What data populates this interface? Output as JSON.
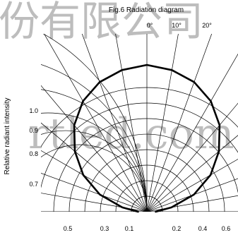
{
  "chart_data": {
    "type": "polar",
    "title": "Fig.6 Radiation diagram",
    "ylabel": "Relative radiant intensity",
    "angle_tick_labels": [
      "0°",
      "10°",
      "20°"
    ],
    "radial_tick_labels": [
      "1.0",
      "0.9",
      "0.8",
      "0.7"
    ],
    "bottom_tick_labels": [
      "0.5",
      "0.3",
      "0.1",
      "0.2",
      "0.4",
      "0.6"
    ],
    "angle_step_deg": 10,
    "series": [
      {
        "angles_deg": [
          -90,
          -80,
          -70,
          -60,
          -50,
          -40,
          -30,
          -20,
          -10,
          0,
          10,
          20,
          30,
          40,
          50,
          60,
          70,
          80,
          90
        ],
        "values": [
          0.06,
          0.17,
          0.34,
          0.5,
          0.64,
          0.77,
          0.87,
          0.94,
          0.98,
          1.0,
          0.98,
          0.94,
          0.87,
          0.77,
          0.64,
          0.5,
          0.34,
          0.17,
          0.06
        ]
      }
    ]
  },
  "watermark": {
    "top_text": "份有限公司",
    "middle_text": "rtled.com"
  }
}
